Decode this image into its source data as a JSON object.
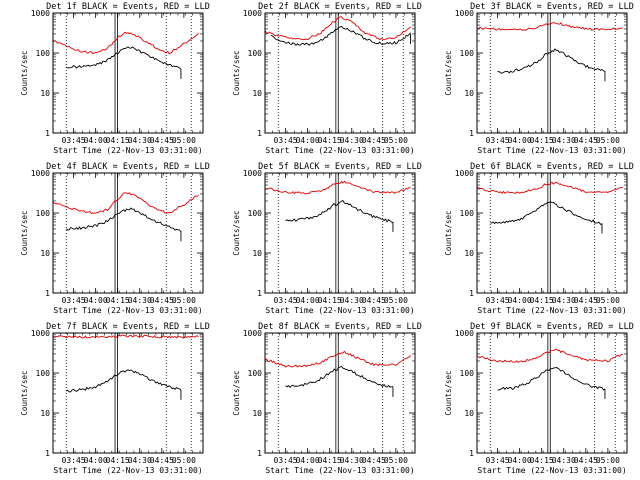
{
  "figure": {
    "title_template": "{det} BLACK = Events, RED = LLD",
    "xlabel": "Start Time (22-Nov-13 03:31:00)",
    "ylabel": "Counts/sec"
  },
  "series_names": [
    "Events",
    "LLD"
  ],
  "colors": {
    "events": "#000000",
    "lld": "#e00000",
    "axes": "#000000"
  },
  "chart_data": [
    {
      "type": "line",
      "title": "Det 1f BLACK = Events, RED = LLD",
      "xlabel": "Start Time (22-Nov-13 03:31:00)",
      "ylabel": "Counts/sec",
      "yscale": "log",
      "ylim": [
        1,
        1000
      ],
      "xlim": [
        "03:31",
        "05:13"
      ],
      "yticks": [
        "1",
        "10",
        "100",
        "1000"
      ],
      "xticks": [
        "03:45",
        "04:00",
        "04:15",
        "04:30",
        "04:45",
        "05:00"
      ],
      "markers": [
        "04:14",
        "04:48"
      ],
      "series": [
        {
          "name": "LLD",
          "x": [
            "03:31",
            "03:40",
            "03:50",
            "04:00",
            "04:08",
            "04:14",
            "04:20",
            "04:26",
            "04:33",
            "04:42",
            "04:50",
            "05:00",
            "05:10"
          ],
          "values": [
            200,
            150,
            110,
            100,
            130,
            220,
            330,
            300,
            200,
            130,
            100,
            170,
            300
          ]
        },
        {
          "name": "Events",
          "x": [
            "03:40",
            "03:50",
            "04:00",
            "04:06",
            "04:12",
            "04:18",
            "04:24",
            "04:30",
            "04:40",
            "04:50",
            "04:58"
          ],
          "values": [
            45,
            45,
            50,
            60,
            85,
            120,
            140,
            110,
            70,
            50,
            40
          ]
        }
      ]
    },
    {
      "type": "line",
      "title": "Det 2f BLACK = Events, RED = LLD",
      "xlabel": "Start Time (22-Nov-13 03:31:00)",
      "ylabel": "Counts/sec",
      "yscale": "log",
      "ylim": [
        1,
        1000
      ],
      "xlim": [
        "03:31",
        "05:13"
      ],
      "yticks": [
        "1",
        "10",
        "100",
        "1000"
      ],
      "xticks": [
        "03:45",
        "04:00",
        "04:15",
        "04:30",
        "04:45",
        "05:00"
      ],
      "markers": [
        "04:20",
        "04:51"
      ],
      "series": [
        {
          "name": "LLD",
          "x": [
            "03:31",
            "03:40",
            "03:50",
            "04:00",
            "04:08",
            "04:15",
            "04:22",
            "04:30",
            "04:40",
            "04:50",
            "05:00",
            "05:10"
          ],
          "values": [
            350,
            270,
            230,
            230,
            300,
            500,
            800,
            600,
            300,
            220,
            250,
            450
          ]
        },
        {
          "name": "Events",
          "x": [
            "03:35",
            "03:45",
            "03:55",
            "04:05",
            "04:12",
            "04:18",
            "04:24",
            "04:30",
            "04:40",
            "04:50",
            "05:00",
            "05:10"
          ],
          "values": [
            260,
            180,
            160,
            170,
            240,
            360,
            450,
            350,
            220,
            170,
            180,
            300
          ]
        }
      ]
    },
    {
      "type": "line",
      "title": "Det 3f BLACK = Events, RED = LLD",
      "xlabel": "Start Time (22-Nov-13 03:31:00)",
      "ylabel": "Counts/sec",
      "yscale": "log",
      "ylim": [
        1,
        1000
      ],
      "xlim": [
        "03:31",
        "05:13"
      ],
      "yticks": [
        "1",
        "10",
        "100",
        "1000"
      ],
      "xticks": [
        "03:45",
        "04:00",
        "04:15",
        "04:30",
        "04:45",
        "05:00"
      ],
      "markers": [
        "04:20",
        "04:51"
      ],
      "series": [
        {
          "name": "LLD",
          "x": [
            "03:31",
            "03:45",
            "04:00",
            "04:10",
            "04:18",
            "04:25",
            "04:35",
            "04:45",
            "05:00",
            "05:10"
          ],
          "values": [
            420,
            390,
            380,
            420,
            520,
            560,
            460,
            400,
            380,
            420
          ]
        },
        {
          "name": "Events",
          "x": [
            "03:45",
            "03:55",
            "04:05",
            "04:12",
            "04:18",
            "04:24",
            "04:30",
            "04:40",
            "04:50",
            "04:58"
          ],
          "values": [
            32,
            35,
            45,
            60,
            95,
            120,
            95,
            55,
            40,
            35
          ]
        }
      ]
    },
    {
      "type": "line",
      "title": "Det 4f BLACK = Events, RED = LLD",
      "xlabel": "Start Time (22-Nov-13 03:31:00)",
      "ylabel": "Counts/sec",
      "yscale": "log",
      "ylim": [
        1,
        1000
      ],
      "xlim": [
        "03:31",
        "05:13"
      ],
      "yticks": [
        "1",
        "10",
        "100",
        "1000"
      ],
      "xticks": [
        "03:45",
        "04:00",
        "04:15",
        "04:30",
        "04:45",
        "05:00"
      ],
      "markers": [
        "04:14",
        "04:48"
      ],
      "series": [
        {
          "name": "LLD",
          "x": [
            "03:31",
            "03:40",
            "03:50",
            "04:00",
            "04:08",
            "04:14",
            "04:20",
            "04:26",
            "04:33",
            "04:42",
            "04:50",
            "05:00",
            "05:10"
          ],
          "values": [
            190,
            140,
            110,
            100,
            120,
            210,
            320,
            290,
            190,
            120,
            100,
            160,
            290
          ]
        },
        {
          "name": "Events",
          "x": [
            "03:40",
            "03:50",
            "04:00",
            "04:06",
            "04:12",
            "04:18",
            "04:24",
            "04:30",
            "04:40",
            "04:50",
            "04:58"
          ],
          "values": [
            40,
            42,
            48,
            58,
            80,
            110,
            130,
            100,
            65,
            45,
            35
          ]
        }
      ]
    },
    {
      "type": "line",
      "title": "Det 5f BLACK = Events, RED = LLD",
      "xlabel": "Start Time (22-Nov-13 03:31:00)",
      "ylabel": "Counts/sec",
      "yscale": "log",
      "ylim": [
        1,
        1000
      ],
      "xlim": [
        "03:31",
        "05:13"
      ],
      "yticks": [
        "1",
        "10",
        "100",
        "1000"
      ],
      "xticks": [
        "03:45",
        "04:00",
        "04:15",
        "04:30",
        "04:45",
        "05:00"
      ],
      "markers": [
        "04:20",
        "04:51"
      ],
      "series": [
        {
          "name": "LLD",
          "x": [
            "03:31",
            "03:45",
            "04:00",
            "04:10",
            "04:18",
            "04:25",
            "04:35",
            "04:45",
            "05:00",
            "05:10"
          ],
          "values": [
            430,
            330,
            310,
            360,
            520,
            600,
            450,
            330,
            320,
            450
          ]
        },
        {
          "name": "Events",
          "x": [
            "03:45",
            "03:55",
            "04:05",
            "04:12",
            "04:18",
            "04:24",
            "04:30",
            "04:40",
            "04:50",
            "04:58"
          ],
          "values": [
            65,
            68,
            80,
            110,
            160,
            190,
            150,
            95,
            70,
            60
          ]
        }
      ]
    },
    {
      "type": "line",
      "title": "Det 6f BLACK = Events, RED = LLD",
      "xlabel": "Start Time (22-Nov-13 03:31:00)",
      "ylabel": "Counts/sec",
      "yscale": "log",
      "ylim": [
        1,
        1000
      ],
      "xlim": [
        "03:31",
        "05:13"
      ],
      "yticks": [
        "1",
        "10",
        "100",
        "1000"
      ],
      "xticks": [
        "03:45",
        "04:00",
        "04:15",
        "04:30",
        "04:45",
        "05:00"
      ],
      "markers": [
        "04:20",
        "04:51"
      ],
      "series": [
        {
          "name": "LLD",
          "x": [
            "03:31",
            "03:45",
            "04:00",
            "04:10",
            "04:18",
            "04:25",
            "04:35",
            "04:45",
            "05:00",
            "05:10"
          ],
          "values": [
            420,
            330,
            320,
            380,
            520,
            580,
            440,
            340,
            330,
            450
          ]
        },
        {
          "name": "Events",
          "x": [
            "03:40",
            "03:50",
            "04:00",
            "04:08",
            "04:15",
            "04:21",
            "04:28",
            "04:38",
            "04:48",
            "04:56"
          ],
          "values": [
            55,
            58,
            70,
            95,
            150,
            185,
            140,
            90,
            65,
            55
          ]
        }
      ]
    },
    {
      "type": "line",
      "title": "Det 7f BLACK = Events, RED = LLD",
      "xlabel": "Start Time (22-Nov-13 03:31:00)",
      "ylabel": "Counts/sec",
      "yscale": "log",
      "ylim": [
        1,
        1000
      ],
      "xlim": [
        "03:31",
        "05:13"
      ],
      "yticks": [
        "1",
        "10",
        "100",
        "1000"
      ],
      "xticks": [
        "03:45",
        "04:00",
        "04:15",
        "04:30",
        "04:45",
        "05:00"
      ],
      "markers": [
        "04:14",
        "04:48"
      ],
      "series": [
        {
          "name": "LLD",
          "x": [
            "03:31",
            "03:45",
            "04:00",
            "04:15",
            "04:30",
            "04:45",
            "05:00",
            "05:10"
          ],
          "values": [
            820,
            800,
            790,
            830,
            840,
            800,
            790,
            830
          ]
        },
        {
          "name": "Events",
          "x": [
            "03:40",
            "03:50",
            "04:00",
            "04:06",
            "04:12",
            "04:18",
            "04:24",
            "04:30",
            "04:40",
            "04:50",
            "04:58"
          ],
          "values": [
            35,
            38,
            45,
            55,
            80,
            110,
            120,
            95,
            60,
            45,
            38
          ]
        }
      ]
    },
    {
      "type": "line",
      "title": "Det 8f BLACK = Events, RED = LLD",
      "xlabel": "Start Time (22-Nov-13 03:31:00)",
      "ylabel": "Counts/sec",
      "yscale": "log",
      "ylim": [
        1,
        1000
      ],
      "xlim": [
        "03:31",
        "05:13"
      ],
      "yticks": [
        "1",
        "10",
        "100",
        "1000"
      ],
      "xticks": [
        "03:45",
        "04:00",
        "04:15",
        "04:30",
        "04:45",
        "05:00"
      ],
      "markers": [
        "04:20",
        "04:51"
      ],
      "series": [
        {
          "name": "LLD",
          "x": [
            "03:31",
            "03:45",
            "04:00",
            "04:10",
            "04:18",
            "04:25",
            "04:35",
            "04:45",
            "05:00",
            "05:10"
          ],
          "values": [
            220,
            150,
            150,
            190,
            280,
            330,
            230,
            160,
            160,
            280
          ]
        },
        {
          "name": "Events",
          "x": [
            "03:45",
            "03:55",
            "04:05",
            "04:12",
            "04:18",
            "04:24",
            "04:30",
            "04:40",
            "04:50",
            "04:58"
          ],
          "values": [
            45,
            48,
            60,
            85,
            120,
            140,
            110,
            70,
            50,
            45
          ]
        }
      ]
    },
    {
      "type": "line",
      "title": "Det 9f BLACK = Events, RED = LLD",
      "xlabel": "Start Time (22-Nov-13 03:31:00)",
      "ylabel": "Counts/sec",
      "yscale": "log",
      "ylim": [
        1,
        1000
      ],
      "xlim": [
        "03:31",
        "05:13"
      ],
      "yticks": [
        "1",
        "10",
        "100",
        "1000"
      ],
      "xticks": [
        "03:45",
        "04:00",
        "04:15",
        "04:30",
        "04:45",
        "05:00"
      ],
      "markers": [
        "04:20",
        "04:51"
      ],
      "series": [
        {
          "name": "LLD",
          "x": [
            "03:31",
            "03:45",
            "04:00",
            "04:10",
            "04:18",
            "04:25",
            "04:35",
            "04:45",
            "05:00",
            "05:10"
          ],
          "values": [
            260,
            200,
            190,
            230,
            320,
            380,
            280,
            210,
            200,
            300
          ]
        },
        {
          "name": "Events",
          "x": [
            "03:45",
            "03:55",
            "04:05",
            "04:12",
            "04:18",
            "04:24",
            "04:30",
            "04:40",
            "04:50",
            "04:58"
          ],
          "values": [
            40,
            42,
            55,
            80,
            115,
            135,
            105,
            65,
            45,
            40
          ]
        }
      ]
    }
  ]
}
